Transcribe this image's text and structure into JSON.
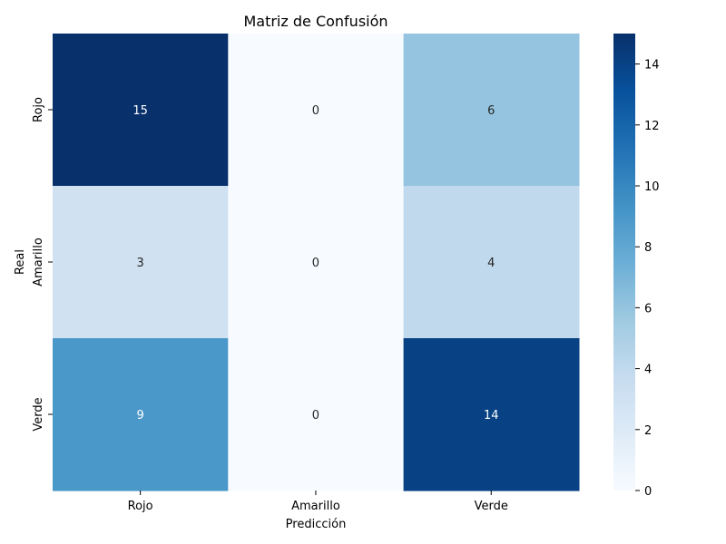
{
  "chart_data": {
    "type": "heatmap",
    "title": "Matriz de Confusión",
    "xlabel": "Predicción",
    "ylabel": "Real",
    "x_categories": [
      "Rojo",
      "Amarillo",
      "Verde"
    ],
    "y_categories": [
      "Rojo",
      "Amarillo",
      "Verde"
    ],
    "values": [
      [
        15,
        0,
        6
      ],
      [
        3,
        0,
        4
      ],
      [
        9,
        0,
        14
      ]
    ],
    "colormap": "Blues",
    "vmin": 0,
    "vmax": 15,
    "colorbar_ticks": [
      0,
      2,
      4,
      6,
      8,
      10,
      12,
      14
    ],
    "annotations": true
  }
}
